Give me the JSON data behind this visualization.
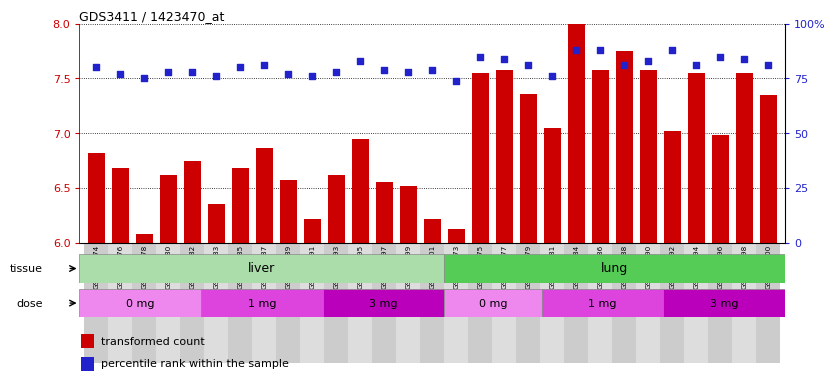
{
  "title": "GDS3411 / 1423470_at",
  "samples": [
    "GSM326974",
    "GSM326976",
    "GSM326978",
    "GSM326980",
    "GSM326982",
    "GSM326983",
    "GSM326985",
    "GSM326987",
    "GSM326989",
    "GSM326991",
    "GSM326993",
    "GSM326995",
    "GSM326997",
    "GSM326999",
    "GSM327001",
    "GSM326973",
    "GSM326975",
    "GSM326977",
    "GSM326979",
    "GSM326981",
    "GSM326984",
    "GSM326986",
    "GSM326988",
    "GSM326990",
    "GSM326992",
    "GSM326994",
    "GSM326996",
    "GSM326998",
    "GSM327000"
  ],
  "bar_values": [
    6.82,
    6.68,
    6.08,
    6.62,
    6.75,
    6.35,
    6.68,
    6.86,
    6.57,
    6.22,
    6.62,
    6.95,
    6.55,
    6.52,
    6.22,
    6.12,
    7.55,
    7.58,
    7.36,
    7.05,
    8.02,
    7.58,
    7.75,
    7.58,
    7.02,
    7.55,
    6.98,
    7.55,
    7.35
  ],
  "percentile_values_pct": [
    80,
    77,
    75,
    78,
    78,
    76,
    80,
    81,
    77,
    76,
    78,
    83,
    79,
    78,
    79,
    74,
    85,
    84,
    81,
    76,
    88,
    88,
    81,
    83,
    88,
    81,
    85,
    84,
    81
  ],
  "ylim_left": [
    6.0,
    8.0
  ],
  "ylim_right": [
    0,
    100
  ],
  "yticks_left": [
    6.0,
    6.5,
    7.0,
    7.5,
    8.0
  ],
  "yticks_right": [
    0,
    25,
    50,
    75,
    100
  ],
  "bar_color": "#cc0000",
  "dot_color": "#2222cc",
  "tissue_liver_label": "liver",
  "tissue_lung_label": "lung",
  "tissue_liver_color": "#aaddaa",
  "tissue_lung_color": "#55cc55",
  "dose_color_0mg": "#ee88ee",
  "dose_color_1mg": "#dd44dd",
  "dose_color_3mg": "#bb00bb",
  "legend_items": [
    "transformed count",
    "percentile rank within the sample"
  ],
  "legend_colors": [
    "#cc0000",
    "#2222cc"
  ],
  "n_liver": 15,
  "n_lung": 14
}
